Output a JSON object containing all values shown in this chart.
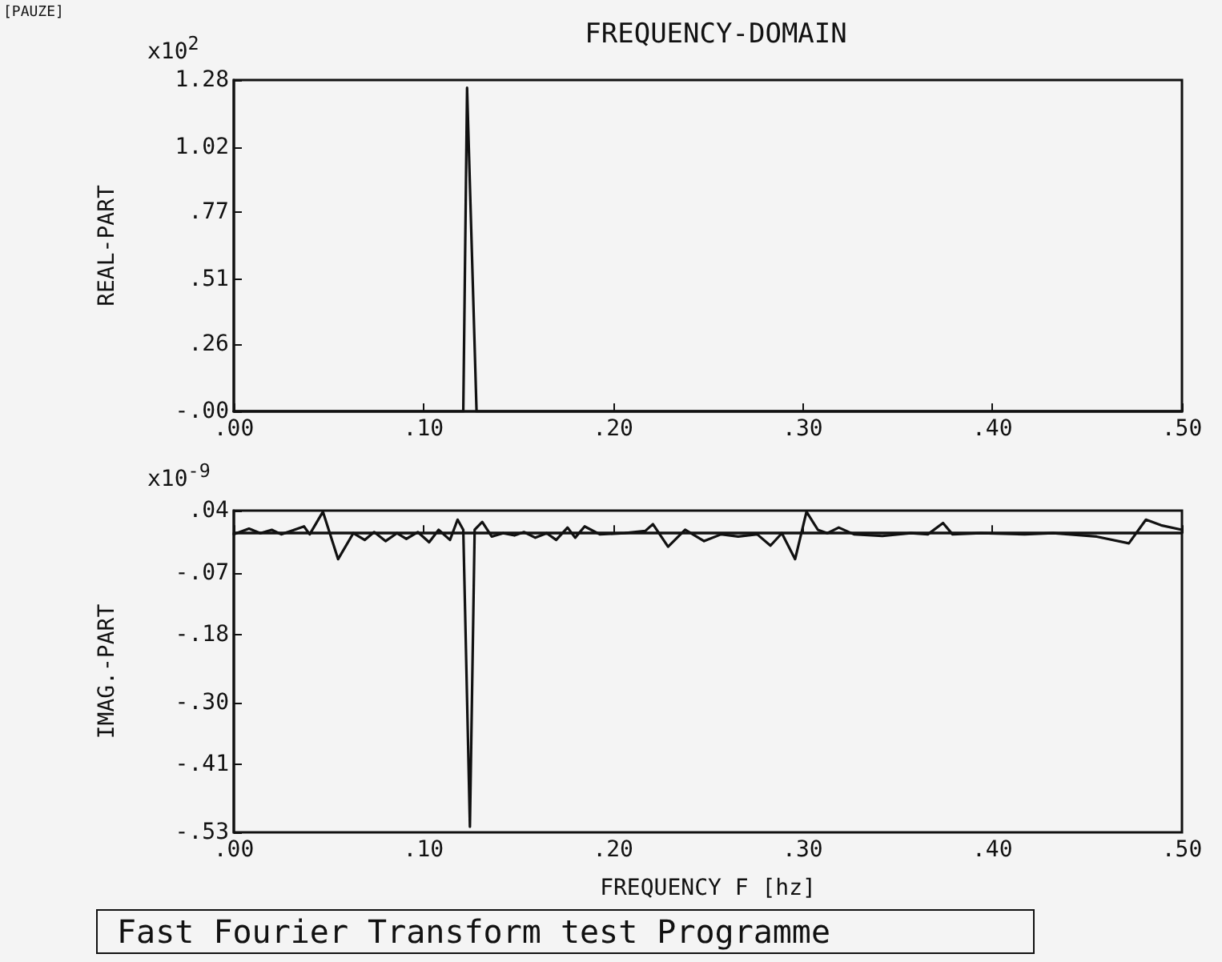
{
  "chart_data": [
    {
      "type": "line",
      "title": "FREQUENCY-DOMAIN",
      "ylabel": "REAL-PART",
      "annotations": [
        "[PAUZE]",
        "x10$^{2}$"
      ],
      "xlim": [
        0,
        0.5
      ],
      "xticks": [
        {
          "value": 0,
          "label": ".00"
        },
        {
          "value": 0.1,
          "label": ".10"
        },
        {
          "value": 0.2,
          "label": ".20"
        },
        {
          "value": 0.3,
          "label": ".30"
        },
        {
          "value": 0.4,
          "label": ".40"
        },
        {
          "value": 0.5,
          "label": ".50"
        }
      ],
      "ylim": [
        0,
        1.28
      ],
      "yticks": [
        {
          "value": 0,
          "label": "-.00"
        },
        {
          "value": 0.26,
          "label": ".26"
        },
        {
          "value": 0.51,
          "label": ".51"
        },
        {
          "value": 0.77,
          "label": ".77"
        },
        {
          "value": 1.02,
          "label": "1.02"
        },
        1.28
      ],
      "marker": "none",
      "line_style": "solid",
      "series": [
        {
          "color": "#111111",
          "x": [
            0,
            0.121,
            0.123,
            0.128,
            0.5
          ],
          "values": [
            0,
            0,
            1.25,
            0,
            0
          ]
        }
      ]
    },
    {
      "type": "line",
      "xlabel": "FREQUENCY F [hz]",
      "ylabel": "IMAG.-PART",
      "annotations": [
        "x10$^{-9}$",
        "Fast Fourier Transform test Programme"
      ],
      "xlim": [
        0,
        0.5
      ],
      "xticks": [
        {
          "value": 0,
          "label": ".00"
        },
        {
          "value": 0.1,
          "label": ".10"
        },
        {
          "value": 0.2,
          "label": ".20"
        },
        {
          "value": 0.3,
          "label": ".30"
        },
        {
          "value": 0.4,
          "label": ".40"
        },
        {
          "value": 0.5,
          "label": ".50"
        }
      ],
      "ylim": [
        -0.53,
        0.04
      ],
      "yticks": [
        {
          "value": -0.53,
          "label": "-.53"
        },
        {
          "value": -0.41,
          "label": "-.41"
        },
        {
          "value": -0.3,
          "label": "-.30"
        },
        {
          "value": -0.18,
          "label": "-.18"
        },
        {
          "value": -0.07,
          "label": "-.07"
        },
        {
          "value": 0.04,
          "label": ".04"
        }
      ],
      "marker": "none",
      "line_style": "solid",
      "ref_lines": [
        {
          "axis": "y",
          "value": 0
        }
      ],
      "series": [
        {
          "color": "#111111",
          "x": [
            0,
            0.008,
            0.014,
            0.02,
            0.025,
            0.031,
            0.037,
            0.04,
            0.047,
            0.055,
            0.063,
            0.069,
            0.074,
            0.08,
            0.086,
            0.091,
            0.097,
            0.103,
            0.108,
            0.114,
            0.118,
            0.121,
            0.1245,
            0.127,
            0.131,
            0.136,
            0.142,
            0.148,
            0.153,
            0.159,
            0.165,
            0.17,
            0.176,
            0.18,
            0.185,
            0.193,
            0.206,
            0.217,
            0.221,
            0.229,
            0.238,
            0.248,
            0.257,
            0.266,
            0.276,
            0.283,
            0.289,
            0.296,
            0.302,
            0.308,
            0.313,
            0.319,
            0.327,
            0.342,
            0.357,
            0.366,
            0.374,
            0.379,
            0.394,
            0.417,
            0.432,
            0.455,
            0.472,
            0.481,
            0.489,
            0.5
          ],
          "values": [
            -0.002,
            0.008,
            0,
            0.006,
            -0.002,
            0.005,
            0.012,
            -0.002,
            0.038,
            -0.046,
            0,
            -0.012,
            0.002,
            -0.014,
            0,
            -0.01,
            0.002,
            -0.016,
            0.006,
            -0.012,
            0.024,
            0.006,
            -0.52,
            0.006,
            0.02,
            -0.006,
            0,
            -0.004,
            0.002,
            -0.008,
            0,
            -0.012,
            0.01,
            -0.008,
            0.012,
            -0.002,
            0,
            0.004,
            0.016,
            -0.024,
            0.006,
            -0.014,
            -0.002,
            -0.006,
            -0.002,
            -0.022,
            0,
            -0.046,
            0.038,
            0.006,
            0,
            0.01,
            -0.002,
            -0.005,
            0,
            -0.002,
            0.018,
            -0.002,
            0,
            -0.002,
            0,
            -0.006,
            -0.018,
            0.024,
            0.014,
            0.006
          ]
        }
      ]
    }
  ]
}
